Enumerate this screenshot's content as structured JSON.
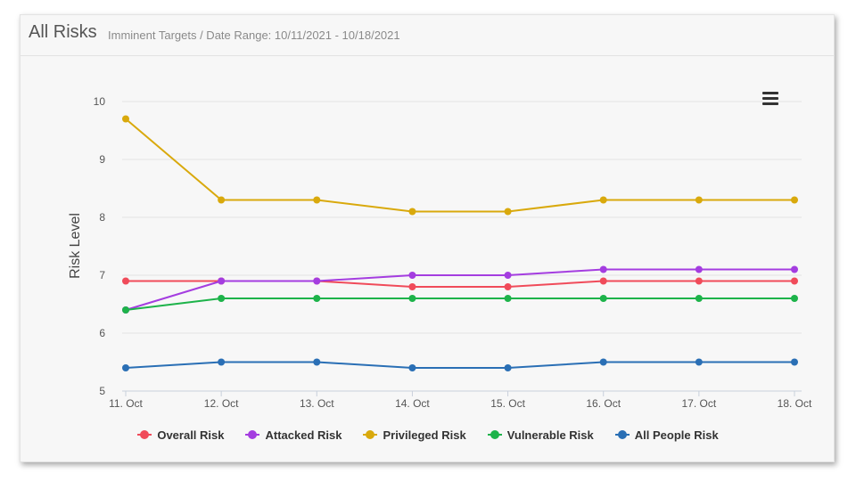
{
  "header": {
    "title": "All Risks",
    "subtitle": "Imminent Targets / Date Range: 10/11/2021 - 10/18/2021"
  },
  "menu": {
    "icon": "hamburger-menu-icon"
  },
  "chart_data": {
    "type": "line",
    "title": "",
    "xlabel": "",
    "ylabel": "Risk Level",
    "ylim": [
      5,
      10
    ],
    "yticks": [
      "5",
      "6",
      "7",
      "8",
      "9",
      "10"
    ],
    "categories": [
      "11. Oct",
      "12. Oct",
      "13. Oct",
      "14. Oct",
      "15. Oct",
      "16. Oct",
      "17. Oct",
      "18. Oct"
    ],
    "grid": true,
    "legend_position": "bottom",
    "series": [
      {
        "name": "Overall Risk",
        "color": "#f04b5a",
        "values": [
          6.9,
          6.9,
          6.9,
          6.8,
          6.8,
          6.9,
          6.9,
          6.9
        ]
      },
      {
        "name": "Attacked Risk",
        "color": "#a43de0",
        "values": [
          6.4,
          6.9,
          6.9,
          7.0,
          7.0,
          7.1,
          7.1,
          7.1
        ]
      },
      {
        "name": "Privileged Risk",
        "color": "#d9a90c",
        "values": [
          9.7,
          8.3,
          8.3,
          8.1,
          8.1,
          8.3,
          8.3,
          8.3
        ]
      },
      {
        "name": "Vulnerable Risk",
        "color": "#1db34a",
        "values": [
          6.4,
          6.6,
          6.6,
          6.6,
          6.6,
          6.6,
          6.6,
          6.6
        ]
      },
      {
        "name": "All People Risk",
        "color": "#2a6fb5",
        "values": [
          5.4,
          5.5,
          5.5,
          5.4,
          5.4,
          5.5,
          5.5,
          5.5
        ]
      }
    ]
  }
}
